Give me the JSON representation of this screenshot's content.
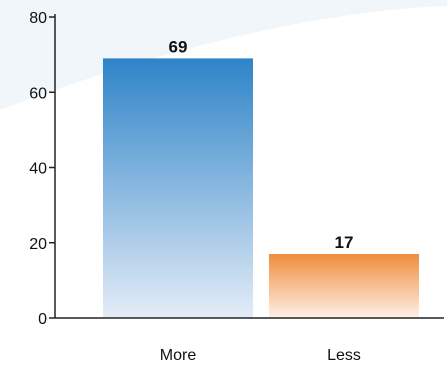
{
  "chart_data": {
    "type": "bar",
    "categories": [
      "More",
      "Less"
    ],
    "values": [
      69,
      17
    ],
    "data_labels": [
      "69",
      "17"
    ],
    "ylim": [
      0,
      80
    ],
    "yticks": [
      0,
      20,
      40,
      60,
      80
    ],
    "ytick_labels": [
      "0",
      "20",
      "40",
      "60",
      "80"
    ],
    "title": "",
    "xlabel": "",
    "ylabel": "",
    "grid": false,
    "legend": "none",
    "colors": {
      "bar_top": [
        "#2e84c8",
        "#f08c3c"
      ],
      "bar_bottom": [
        "#e4ecf7",
        "#fdf1e8"
      ],
      "axis": "#222222",
      "text": "#111111",
      "background_swoosh": "#f1f6fb"
    }
  }
}
